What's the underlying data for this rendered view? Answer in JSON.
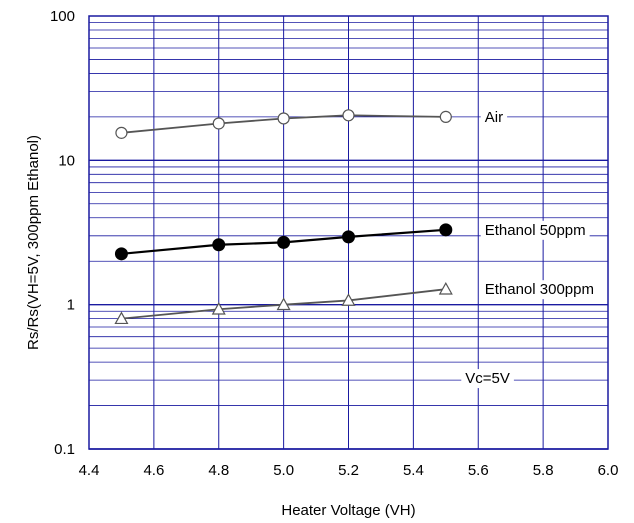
{
  "chart_data": {
    "type": "line",
    "xlabel": "Heater Voltage (VH)",
    "ylabel": "Rs/Rs(VH=5V, 300ppm Ethanol)",
    "xlim": [
      4.4,
      6.0
    ],
    "ylim": [
      0.1,
      100
    ],
    "yscale": "log",
    "grid": true,
    "x_ticks": [
      "4.4",
      "4.6",
      "4.8",
      "5.0",
      "5.2",
      "5.4",
      "5.6",
      "5.8",
      "6.0"
    ],
    "y_ticks": [
      "0.1",
      "1",
      "10",
      "100"
    ],
    "x": [
      4.5,
      4.8,
      5.0,
      5.2,
      5.5
    ],
    "series": [
      {
        "name": "Air",
        "values": [
          15.5,
          18.0,
          19.5,
          20.5,
          20.0
        ],
        "marker": "open-circle",
        "color": "#555555"
      },
      {
        "name": "Ethanol 50ppm",
        "values": [
          2.25,
          2.6,
          2.7,
          2.95,
          3.3
        ],
        "marker": "filled-circle",
        "color": "#000000"
      },
      {
        "name": "Ethanol 300ppm",
        "values": [
          0.8,
          0.93,
          1.0,
          1.07,
          1.28
        ],
        "marker": "open-triangle",
        "color": "#555555"
      }
    ],
    "annotations": [
      "Vc=5V"
    ]
  }
}
